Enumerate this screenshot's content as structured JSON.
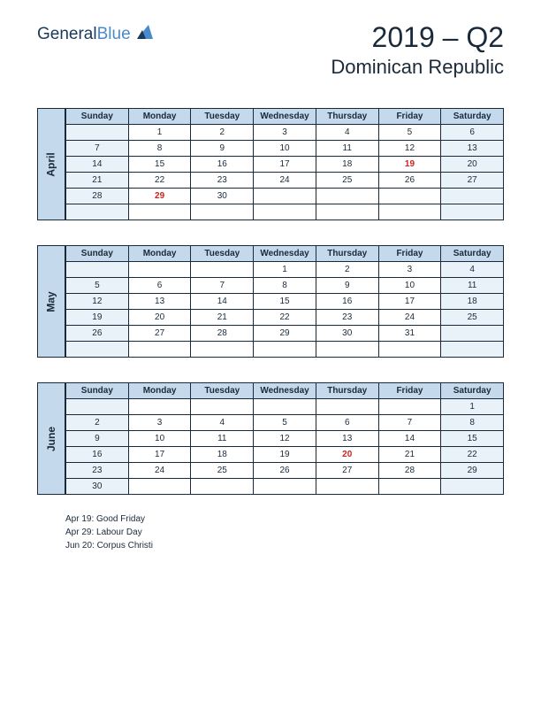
{
  "logo": {
    "part1": "General",
    "part2": "Blue"
  },
  "header": {
    "title": "2019 – Q2",
    "country": "Dominican Republic"
  },
  "day_headers": [
    "Sunday",
    "Monday",
    "Tuesday",
    "Wednesday",
    "Thursday",
    "Friday",
    "Saturday"
  ],
  "months": [
    {
      "name": "April",
      "weeks": [
        [
          "",
          "1",
          "2",
          "3",
          "4",
          "5",
          "6"
        ],
        [
          "7",
          "8",
          "9",
          "10",
          "11",
          "12",
          "13"
        ],
        [
          "14",
          "15",
          "16",
          "17",
          "18",
          "19",
          "20"
        ],
        [
          "21",
          "22",
          "23",
          "24",
          "25",
          "26",
          "27"
        ],
        [
          "28",
          "29",
          "30",
          "",
          "",
          "",
          ""
        ],
        [
          "",
          "",
          "",
          "",
          "",
          "",
          ""
        ]
      ],
      "holidays": [
        "19",
        "29"
      ]
    },
    {
      "name": "May",
      "weeks": [
        [
          "",
          "",
          "",
          "1",
          "2",
          "3",
          "4"
        ],
        [
          "5",
          "6",
          "7",
          "8",
          "9",
          "10",
          "11"
        ],
        [
          "12",
          "13",
          "14",
          "15",
          "16",
          "17",
          "18"
        ],
        [
          "19",
          "20",
          "21",
          "22",
          "23",
          "24",
          "25"
        ],
        [
          "26",
          "27",
          "28",
          "29",
          "30",
          "31",
          ""
        ],
        [
          "",
          "",
          "",
          "",
          "",
          "",
          ""
        ]
      ],
      "holidays": []
    },
    {
      "name": "June",
      "weeks": [
        [
          "",
          "",
          "",
          "",
          "",
          "",
          "1"
        ],
        [
          "2",
          "3",
          "4",
          "5",
          "6",
          "7",
          "8"
        ],
        [
          "9",
          "10",
          "11",
          "12",
          "13",
          "14",
          "15"
        ],
        [
          "16",
          "17",
          "18",
          "19",
          "20",
          "21",
          "22"
        ],
        [
          "23",
          "24",
          "25",
          "26",
          "27",
          "28",
          "29"
        ],
        [
          "30",
          "",
          "",
          "",
          "",
          "",
          ""
        ]
      ],
      "holidays": [
        "20"
      ]
    }
  ],
  "holiday_list": [
    "Apr 19: Good Friday",
    "Apr 29: Labour Day",
    "Jun 20: Corpus Christi"
  ],
  "colors": {
    "header_bg": "#c5d9ec",
    "weekend_bg": "#e9f1f9",
    "border": "#1a2a3a",
    "holiday_text": "#cc2222",
    "logo_blue": "#4a8acc",
    "logo_dark": "#1a3a5a"
  }
}
